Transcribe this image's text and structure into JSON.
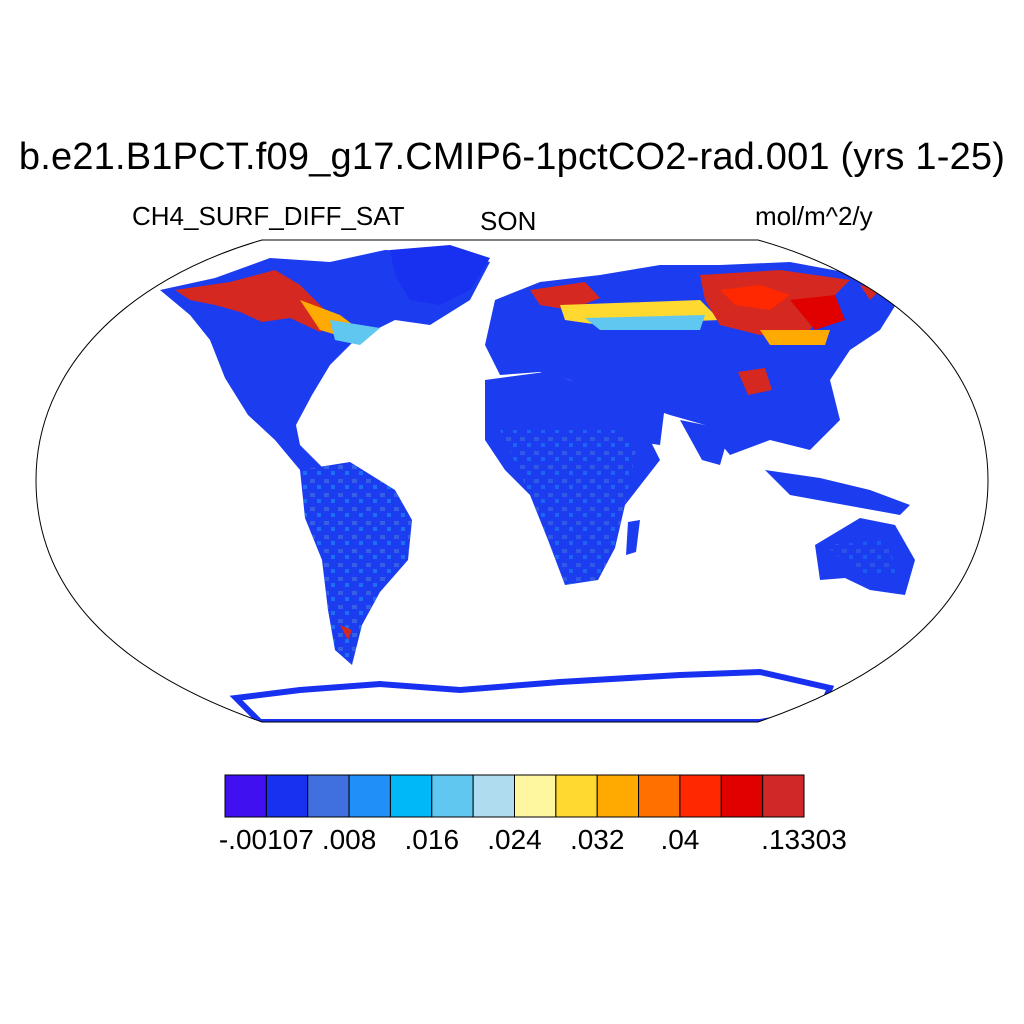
{
  "title": "b.e21.B1PCT.f09_g17.CMIP6-1pctCO2-rad.001 (yrs 1-25)",
  "variable": "CH4_SURF_DIFF_SAT",
  "season": "SON",
  "units": "mol/m^2/y",
  "map": {
    "projection": "Robinson",
    "colorbar": {
      "colors": [
        "#4010f0",
        "#1830f0",
        "#4070e0",
        "#2090f8",
        "#00b8f8",
        "#60c8f0",
        "#b0dcf0",
        "#fff6a0",
        "#ffd830",
        "#ffaa00",
        "#ff7000",
        "#ff2800",
        "#e00000",
        "#d02828"
      ],
      "labels": [
        "-.00107",
        ".008",
        ".016",
        ".024",
        ".032",
        ".04",
        ".13303"
      ],
      "label_positions": [
        1,
        3,
        5,
        7,
        9,
        11,
        14
      ]
    }
  }
}
